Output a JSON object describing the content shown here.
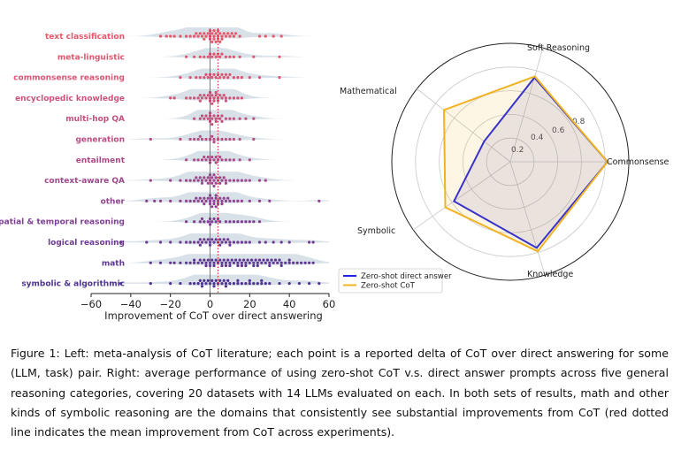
{
  "figure": {
    "chart_data": [
      {
        "type": "scatter",
        "categories": [
          "text classification",
          "meta-linguistic",
          "commonsense reasoning",
          "encyclopedic knowledge",
          "multi-hop QA",
          "generation",
          "entailment",
          "context-aware QA",
          "other",
          "spatial & temporal reasoning",
          "logical reasoning",
          "math",
          "symbolic & algorithmic"
        ],
        "category_colors": [
          "#e8566a",
          "#e0566f",
          "#d95574",
          "#cf5379",
          "#c4507e",
          "#b94d83",
          "#ac4a88",
          "#9e478c",
          "#8e438f",
          "#7e3f91",
          "#6e3b92",
          "#5e3793",
          "#4f3391"
        ],
        "series": [
          {
            "category": "text classification",
            "points": [
              -25,
              -22,
              -20,
              -18,
              -15,
              -12,
              -10,
              -8,
              -7,
              -5,
              -4,
              -3,
              -2,
              -1,
              0,
              0,
              1,
              1,
              2,
              2,
              3,
              3,
              4,
              4,
              5,
              5,
              6,
              7,
              8,
              9,
              10,
              11,
              12,
              13,
              15,
              -6,
              -3,
              0,
              2,
              4,
              6,
              25,
              28,
              32,
              36
            ]
          },
          {
            "category": "meta-linguistic",
            "points": [
              -12,
              -8,
              -5,
              -3,
              -1,
              0,
              1,
              2,
              3,
              4,
              5,
              6,
              8,
              10,
              12,
              15,
              22,
              35
            ]
          },
          {
            "category": "commonsense reasoning",
            "points": [
              -15,
              -10,
              -7,
              -5,
              -3,
              -2,
              -1,
              0,
              1,
              2,
              3,
              4,
              5,
              6,
              7,
              8,
              9,
              10,
              12,
              14,
              16,
              20,
              25,
              35
            ]
          },
          {
            "category": "encyclopedic knowledge",
            "points": [
              -10,
              -8,
              -6,
              -5,
              -4,
              -3,
              -2,
              -1,
              0,
              0,
              1,
              1,
              2,
              2,
              3,
              3,
              4,
              5,
              6,
              7,
              8,
              10,
              12,
              14,
              16,
              -12,
              -5,
              0,
              4,
              8,
              -20,
              -18
            ]
          },
          {
            "category": "multi-hop QA",
            "points": [
              -8,
              -5,
              -3,
              -2,
              -1,
              0,
              0,
              1,
              1,
              2,
              3,
              4,
              5,
              6,
              8,
              10,
              12,
              15,
              18,
              22,
              -4,
              0,
              3,
              6
            ]
          },
          {
            "category": "generation",
            "points": [
              -30,
              -15,
              -10,
              -8,
              -6,
              -4,
              -2,
              0,
              1,
              2,
              4,
              6,
              8,
              10,
              12,
              15,
              22,
              -5,
              2
            ]
          },
          {
            "category": "entailment",
            "points": [
              -12,
              -8,
              -6,
              -4,
              -2,
              -1,
              0,
              1,
              2,
              3,
              4,
              5,
              6,
              8,
              10,
              12,
              15,
              20,
              -3,
              0,
              3
            ]
          },
          {
            "category": "context-aware QA",
            "points": [
              -30,
              -20,
              -15,
              -12,
              -10,
              -8,
              -6,
              -5,
              -4,
              -3,
              -2,
              -1,
              0,
              0,
              1,
              1,
              2,
              2,
              3,
              3,
              4,
              5,
              6,
              7,
              8,
              10,
              12,
              14,
              16,
              18,
              -7,
              -4,
              -1,
              2,
              5,
              8,
              20,
              25,
              28
            ]
          },
          {
            "category": "other",
            "points": [
              -32,
              -28,
              -25,
              -20,
              -15,
              -12,
              -10,
              -8,
              -6,
              -5,
              -4,
              -3,
              -2,
              -1,
              0,
              0,
              1,
              1,
              2,
              2,
              3,
              3,
              4,
              4,
              5,
              6,
              7,
              8,
              9,
              10,
              12,
              14,
              16,
              20,
              25,
              30,
              -7,
              -3,
              0,
              3,
              6,
              55
            ]
          },
          {
            "category": "spatial & temporal reasoning",
            "points": [
              -12,
              -8,
              -5,
              -3,
              -1,
              0,
              1,
              2,
              3,
              5,
              8,
              10,
              12,
              14,
              16,
              18,
              20,
              22,
              25,
              -4,
              0,
              4
            ]
          },
          {
            "category": "logical reasoning",
            "points": [
              -45,
              -32,
              -25,
              -20,
              -15,
              -12,
              -10,
              -8,
              -6,
              -5,
              -4,
              -3,
              -2,
              -1,
              0,
              1,
              2,
              3,
              4,
              5,
              6,
              7,
              8,
              9,
              10,
              12,
              14,
              16,
              18,
              20,
              25,
              28,
              32,
              36,
              40,
              50,
              52,
              -5,
              0,
              5,
              10
            ]
          },
          {
            "category": "math",
            "points": [
              -30,
              -25,
              -20,
              -18,
              -15,
              -12,
              -10,
              -8,
              -6,
              -5,
              -4,
              -3,
              -2,
              -1,
              0,
              1,
              2,
              3,
              4,
              5,
              6,
              7,
              8,
              9,
              10,
              11,
              12,
              13,
              14,
              15,
              16,
              17,
              18,
              19,
              20,
              21,
              22,
              23,
              24,
              25,
              26,
              27,
              28,
              29,
              30,
              31,
              32,
              33,
              34,
              35,
              36,
              38,
              40,
              42,
              44,
              46,
              48,
              50,
              52,
              -2,
              2,
              6,
              10,
              14,
              18,
              22,
              -8,
              0,
              8,
              16,
              24,
              30,
              36,
              40
            ]
          },
          {
            "category": "symbolic & algorithmic",
            "points": [
              -45,
              -30,
              -20,
              -15,
              -10,
              -8,
              -6,
              -5,
              -4,
              -3,
              -2,
              -1,
              0,
              1,
              2,
              3,
              4,
              5,
              6,
              7,
              8,
              9,
              10,
              12,
              14,
              16,
              18,
              20,
              22,
              24,
              26,
              28,
              30,
              35,
              40,
              45,
              50,
              55,
              -4,
              2,
              8,
              14,
              20,
              26
            ]
          }
        ],
        "mean_line": 4,
        "xlabel": "Improvement of CoT over direct answering",
        "xticks": [
          "−60",
          "−40",
          "−20",
          "0",
          "20",
          "40",
          "60"
        ],
        "xlim": [
          -60,
          60
        ]
      },
      {
        "type": "radar",
        "axes": [
          "Soft Reasoning",
          "Commonsense",
          "Knowledge",
          "Symbolic",
          "Mathematical"
        ],
        "rticks": [
          "0.2",
          "0.4",
          "0.6",
          "0.8"
        ],
        "rlim": [
          0,
          1
        ],
        "series": [
          {
            "name": "Zero-shot direct answer",
            "color": "#1f22e0",
            "values": [
              0.74,
              0.82,
              0.76,
              0.58,
              0.28
            ]
          },
          {
            "name": "Zero-shot CoT",
            "color": "#f0b323",
            "values": [
              0.75,
              0.82,
              0.79,
              0.67,
              0.71
            ]
          }
        ],
        "legend_position": "lower-left"
      }
    ]
  },
  "caption": {
    "text": "Figure 1: Left: meta-analysis of CoT literature; each point is a reported delta of CoT over direct answering for some (LLM, task) pair. Right: average performance of using zero-shot CoT v.s. direct answer prompts across five general reasoning categories, covering 20 datasets with 14 LLMs evaluated on each. In both sets of results, math and other kinds of symbolic reasoning are the domains that consistently see substantial improvements from CoT (red dotted line indicates the mean improvement from CoT across experiments)."
  }
}
